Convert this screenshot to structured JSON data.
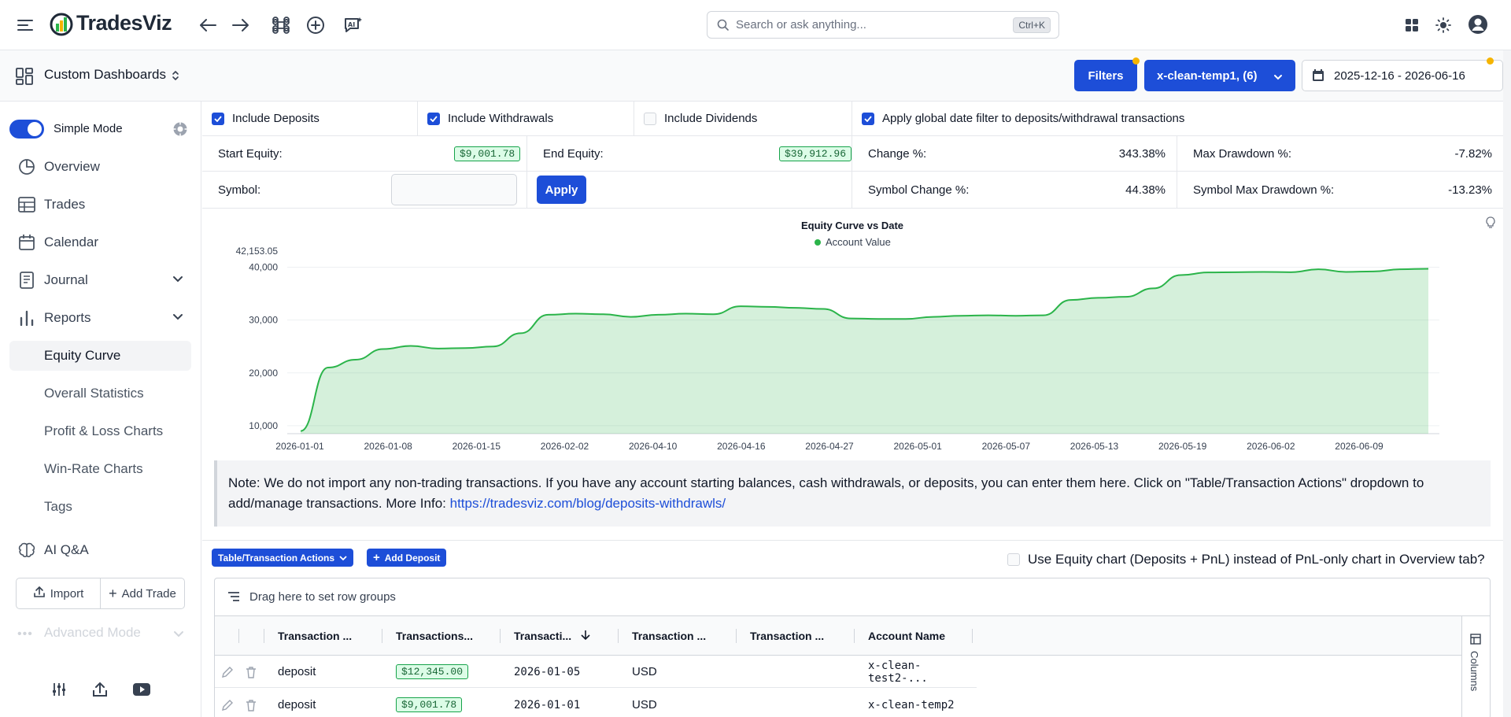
{
  "app": {
    "name": "TradesViz"
  },
  "search": {
    "placeholder": "Search or ask anything...",
    "shortcut": "Ctrl+K"
  },
  "dashboard": {
    "title": "Custom Dashboards"
  },
  "toolbar": {
    "filters_label": "Filters",
    "account_label": "x-clean-temp1, (6)",
    "date_range": "2025-12-16 - 2026-06-16"
  },
  "sidebar": {
    "simple_mode_label": "Simple Mode",
    "items": [
      {
        "label": "Overview"
      },
      {
        "label": "Trades"
      },
      {
        "label": "Calendar"
      },
      {
        "label": "Journal"
      },
      {
        "label": "Reports"
      }
    ],
    "sub_items": [
      {
        "label": "Equity Curve"
      },
      {
        "label": "Overall Statistics"
      },
      {
        "label": "Profit & Loss Charts"
      },
      {
        "label": "Win-Rate Charts"
      },
      {
        "label": "Tags"
      }
    ],
    "ai_label": "AI Q&A",
    "import_label": "Import",
    "add_trade_label": "Add Trade",
    "advanced_label": "Advanced Mode"
  },
  "filters": {
    "include_deposits": "Include Deposits",
    "include_withdrawals": "Include Withdrawals",
    "include_dividends": "Include Dividends",
    "apply_global": "Apply global date filter to deposits/withdrawal transactions"
  },
  "stats": {
    "start_equity_label": "Start Equity:",
    "start_equity": "$9,001.78",
    "end_equity_label": "End Equity:",
    "end_equity": "$39,912.96",
    "change_label": "Change %:",
    "change": "343.38%",
    "max_dd_label": "Max Drawdown %:",
    "max_dd": "-7.82%",
    "symbol_label": "Symbol:",
    "apply_label": "Apply",
    "symbol_change_label": "Symbol Change %:",
    "symbol_change": "44.38%",
    "symbol_max_dd_label": "Symbol Max Drawdown %:",
    "symbol_max_dd": "-13.23%"
  },
  "chart_data": {
    "type": "area",
    "title": "Equity Curve vs Date",
    "series": [
      {
        "name": "Account Value",
        "color": "#2bb44a",
        "values": [
          9001.78,
          21000,
          22500,
          24500,
          25100,
          24600,
          24700,
          25000,
          27500,
          31000,
          31200,
          31100,
          30600,
          31000,
          31200,
          31100,
          32600,
          32500,
          32300,
          32100,
          30300,
          30200,
          30200,
          30600,
          30800,
          30900,
          30800,
          30900,
          33800,
          34200,
          34400,
          36000,
          38500,
          39000,
          39050,
          39100,
          39050,
          39600,
          39100,
          39200,
          39600,
          39700
        ]
      }
    ],
    "x_tick_labels": [
      "2026-01-01",
      "2026-01-08",
      "2026-01-15",
      "2026-02-02",
      "2026-04-10",
      "2026-04-16",
      "2026-04-27",
      "2026-05-01",
      "2026-05-07",
      "2026-05-13",
      "2026-05-19",
      "2026-06-02",
      "2026-06-09"
    ],
    "y_ticks": [
      10000,
      20000,
      30000,
      40000
    ],
    "y_tick_labels": [
      "10,000",
      "20,000",
      "30,000",
      "40,000"
    ],
    "y_max_label": "42,153.05",
    "ylim": [
      8500,
      42153.05
    ],
    "grid": true,
    "legend": "top-center"
  },
  "note": {
    "text": "Note: We do not import any non-trading transactions. If you have any account starting balances, cash withdrawals, or deposits, you can enter them here. Click on \"Table/Transaction Actions\" dropdown to add/manage transactions. More Info: ",
    "link": "https://tradesviz.com/blog/deposits-withdrawls/"
  },
  "table_actions": {
    "actions_label": "Table/Transaction Actions",
    "add_deposit_label": "Add Deposit",
    "equity_option": "Use Equity chart (Deposits + PnL) instead of PnL-only chart in Overview tab?",
    "group_hint": "Drag here to set row groups",
    "columns_label": "Columns"
  },
  "table": {
    "headers": [
      "Transaction ...",
      "Transactions...",
      "Transacti...",
      "Transaction ...",
      "Transaction ...",
      "Account Name"
    ],
    "rows": [
      {
        "type": "deposit",
        "amount": "$12,345.00",
        "date": "2026-01-05",
        "currency": "USD",
        "note": "",
        "account": "x-clean-test2-..."
      },
      {
        "type": "deposit",
        "amount": "$9,001.78",
        "date": "2026-01-01",
        "currency": "USD",
        "note": "",
        "account": "x-clean-temp2"
      }
    ]
  }
}
